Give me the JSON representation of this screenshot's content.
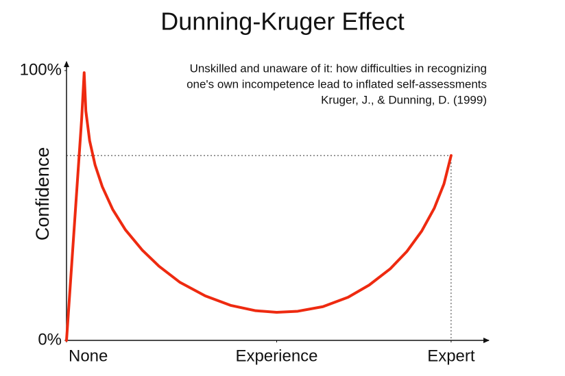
{
  "chart_data": {
    "type": "line",
    "title": "Dunning-Kruger Effect",
    "subtitle": [
      "Unskilled and unaware of it: how difficulties in recognizing",
      "one's own incompetence lead to inflated self-assessments",
      "Kruger, J., & Dunning, D. (1999)"
    ],
    "y_label": "Confidence",
    "x": [
      0,
      3.6,
      4.2,
      4.6,
      5.5,
      6.8,
      8.5,
      11,
      14,
      18,
      22,
      27,
      33,
      39,
      45,
      50,
      55,
      61,
      67,
      72,
      77,
      81,
      84.5,
      87.5,
      89.8,
      91.5
    ],
    "values": [
      0,
      82,
      99.2,
      85,
      74,
      65,
      57,
      48.5,
      41,
      33.5,
      27.5,
      21.5,
      16.5,
      13,
      11,
      10.4,
      10.8,
      12.5,
      16,
      20.5,
      26.5,
      33,
      40.5,
      49,
      58,
      68.5
    ],
    "color": "#ee2a10",
    "xlim": [
      0,
      100
    ],
    "ylim": [
      0,
      100
    ],
    "xticks": [
      {
        "value": 0,
        "label": "None"
      },
      {
        "value": 50,
        "label": "Experience"
      },
      {
        "value": 91.5,
        "label": "Expert"
      }
    ],
    "yticks": [
      {
        "value": 0,
        "label": "0%"
      },
      {
        "value": 100,
        "label": "100%"
      }
    ]
  }
}
